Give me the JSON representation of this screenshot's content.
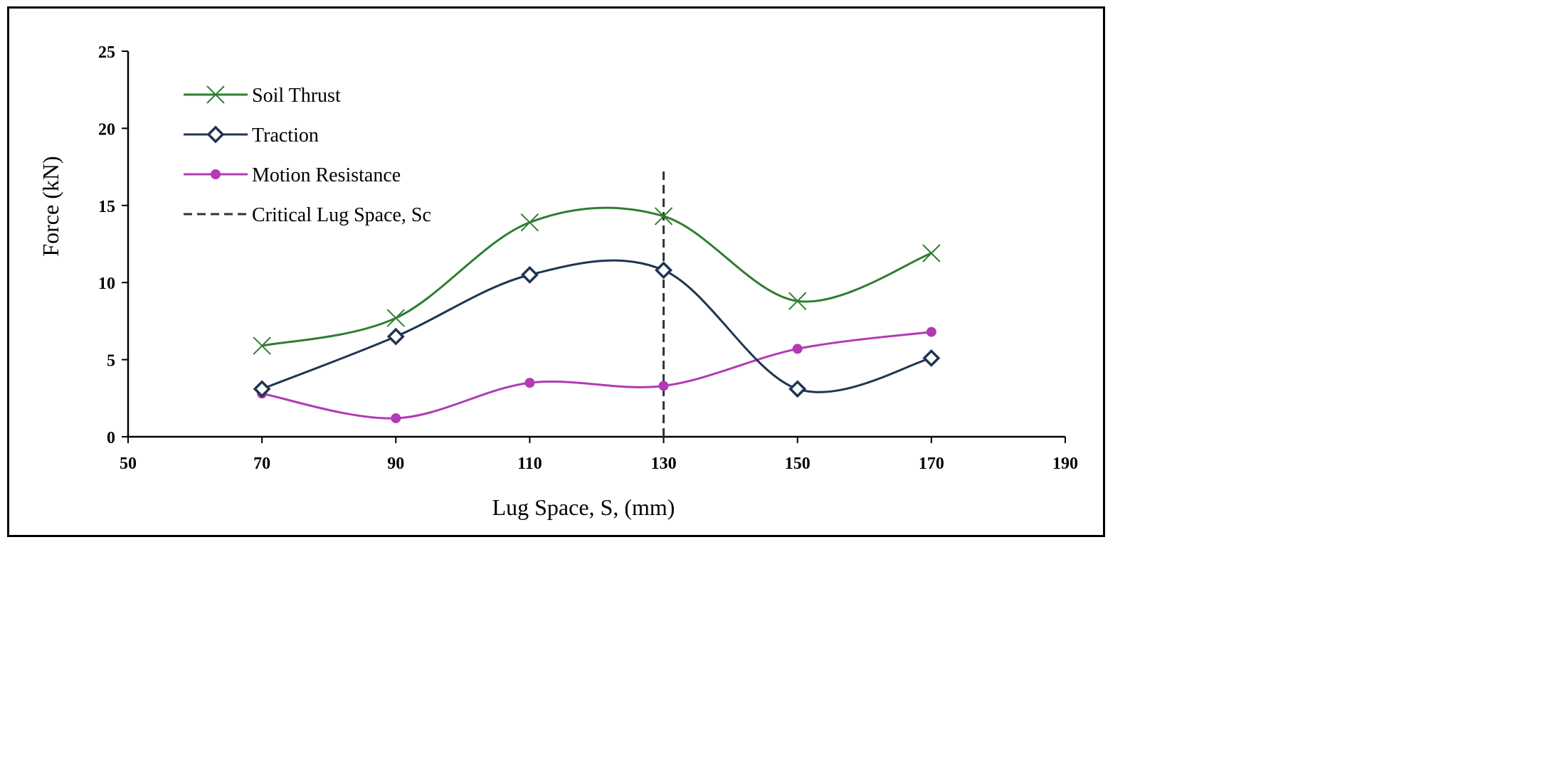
{
  "chart_data": {
    "type": "line",
    "xlabel": "Lug Space, S, (mm)",
    "ylabel": "Force (kN)",
    "xlim": [
      50,
      190
    ],
    "ylim": [
      0,
      25
    ],
    "xticks": [
      50,
      70,
      90,
      110,
      130,
      150,
      170,
      190
    ],
    "yticks": [
      0,
      5,
      10,
      15,
      20,
      25
    ],
    "x": [
      70,
      90,
      110,
      130,
      150,
      170
    ],
    "series": [
      {
        "name": "Soil Thrust",
        "color": "#2e7d32",
        "marker": "x",
        "values": [
          5.9,
          7.7,
          13.9,
          14.3,
          8.8,
          11.9
        ]
      },
      {
        "name": "Traction",
        "color": "#1f3552",
        "marker": "diamond",
        "values": [
          3.1,
          6.5,
          10.5,
          10.8,
          3.1,
          5.1
        ]
      },
      {
        "name": "Motion Resistance",
        "color": "#b23ab5",
        "marker": "circle",
        "values": [
          2.8,
          1.2,
          3.5,
          3.3,
          5.7,
          6.8
        ]
      }
    ],
    "reference_line": {
      "name": "Critical Lug Space, Sc",
      "x": 130,
      "y_range": [
        0,
        17.2
      ],
      "style": "dashed",
      "color": "#333333"
    },
    "legend_position": "top-left",
    "grid": false
  }
}
